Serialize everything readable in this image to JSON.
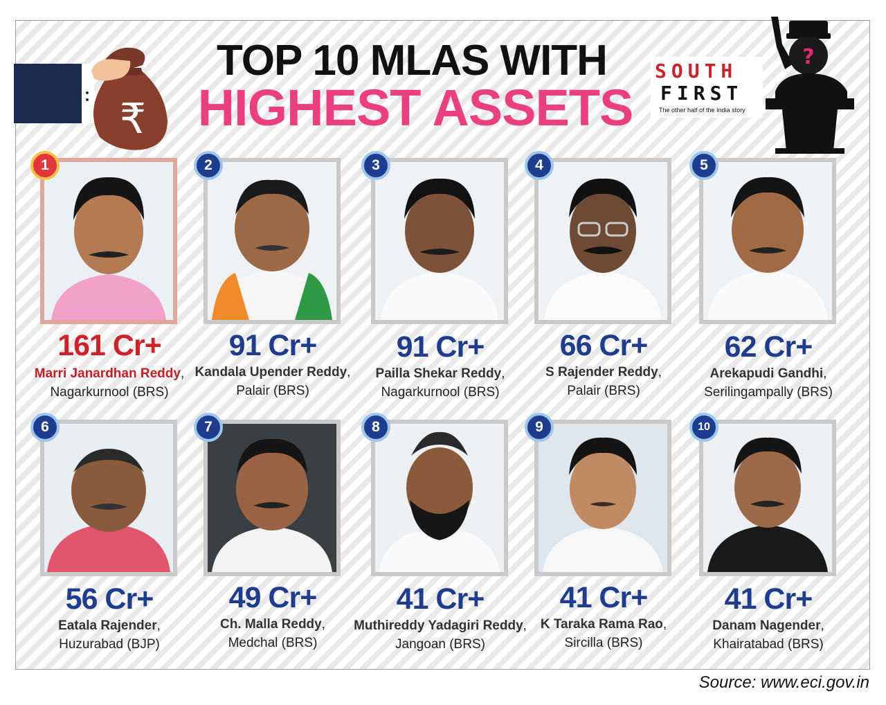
{
  "header": {
    "title_line1": "TOP 10 MLAS WITH",
    "title_line2": "HIGHEST ASSETS",
    "currency_symbol": "₹"
  },
  "logo": {
    "line1": "SOUTH",
    "line2": "FIRST",
    "tagline": "The other half of the India story"
  },
  "speaker_mark": "?",
  "mlas": [
    {
      "rank": "1",
      "amount": "161 Cr+",
      "name": "Marri Janardhan Reddy",
      "detail": "Nagarkurnool (BRS)"
    },
    {
      "rank": "2",
      "amount": "91 Cr+",
      "name": "Kandala Upender Reddy",
      "detail": "Palair (BRS)"
    },
    {
      "rank": "3",
      "amount": "91 Cr+",
      "name": "Pailla Shekar Reddy",
      "detail": "Nagarkurnool (BRS)"
    },
    {
      "rank": "4",
      "amount": "66 Cr+",
      "name": "S Rajender Reddy",
      "detail": "Palair (BRS)"
    },
    {
      "rank": "5",
      "amount": "62 Cr+",
      "name": "Arekapudi Gandhi",
      "detail": "Serilingampally (BRS)"
    },
    {
      "rank": "6",
      "amount": "56 Cr+",
      "name": "Eatala Rajender",
      "detail": "Huzurabad (BJP)"
    },
    {
      "rank": "7",
      "amount": "49 Cr+",
      "name": "Ch. Malla Reddy",
      "detail": "Medchal (BRS)"
    },
    {
      "rank": "8",
      "amount": "41 Cr+",
      "name": "Muthireddy Yadagiri Reddy",
      "detail": "Jangoan (BRS)"
    },
    {
      "rank": "9",
      "amount": "41 Cr+",
      "name": "K Taraka Rama Rao",
      "detail": "Sircilla (BRS)"
    },
    {
      "rank": "10",
      "amount": "41 Cr+",
      "name": "Danam Nagender",
      "detail": "Khairatabad (BRS)"
    }
  ],
  "source": "Source: www.eci.gov.in",
  "colors": {
    "accent_pink": "#ec3f80",
    "amount_blue": "#1f3d8f",
    "top_red": "#d0202a"
  }
}
